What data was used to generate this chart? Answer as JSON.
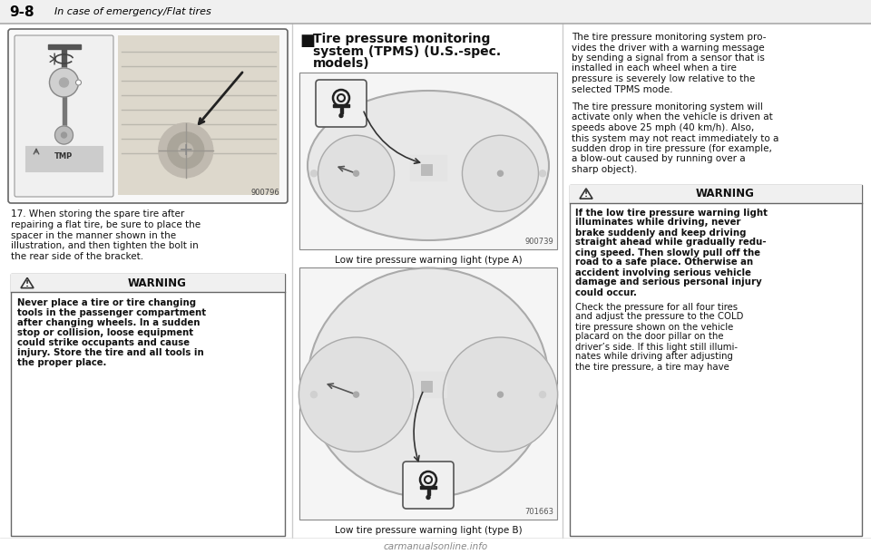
{
  "page_number": "9-8",
  "page_header": "In case of emergency/Flat tires",
  "bg_color": "#ffffff",
  "image1_id": "900796",
  "para17_text": "17. When storing the spare tire after\nrepairing a flat tire, be sure to place the\nspacer in the manner shown in the\nillustration, and then tighten the bolt in\nthe rear side of the bracket.",
  "warning1_title": "WARNING",
  "warning1_body": "Never place a tire or tire changing\ntools in the passenger compartment\nafter changing wheels. In a sudden\nstop or collision, loose equipment\ncould strike occupants and cause\ninjury. Store the tire and all tools in\nthe proper place.",
  "section_title_bullet": "■",
  "section_title_line1": "Tire pressure monitoring",
  "section_title_line2": "system (TPMS) (U.S.-spec.",
  "section_title_line3": "models)",
  "image2_id": "900739",
  "image2_caption": "Low tire pressure warning light (type A)",
  "image3_id": "701663",
  "image3_caption": "Low tire pressure warning light (type B)",
  "right_para1": "The tire pressure monitoring system pro-\nvides the driver with a warning message\nby sending a signal from a sensor that is\ninstalled in each wheel when a tire\npressure is severely low relative to the\nselected TPMS mode.",
  "right_para2": "The tire pressure monitoring system will\nactivate only when the vehicle is driven at\nspeeds above 25 mph (40 km/h). Also,\nthis system may not react immediately to a\nsudden drop in tire pressure (for example,\na blow-out caused by running over a\nsharp object).",
  "warning2_title": "WARNING",
  "warning2_body_bold": "If the low tire pressure warning light\nilluminates while driving, never\nbrake suddenly and keep driving\nstraight ahead while gradually redu-\ncing speed. Then slowly pull off the\nroad to a safe place. Otherwise an\naccident involving serious vehicle\ndamage and serious personal injury\ncould occur.",
  "warning2_body_normal": "Check the pressure for all four tires\nand adjust the pressure to the COLD\ntire pressure shown on the vehicle\nplacard on the door pillar on the\ndriver’s side. If this light still illumi-\nnates while driving after adjusting\nthe tire pressure, a tire may have",
  "footer_text": "carmanualsonline.info"
}
